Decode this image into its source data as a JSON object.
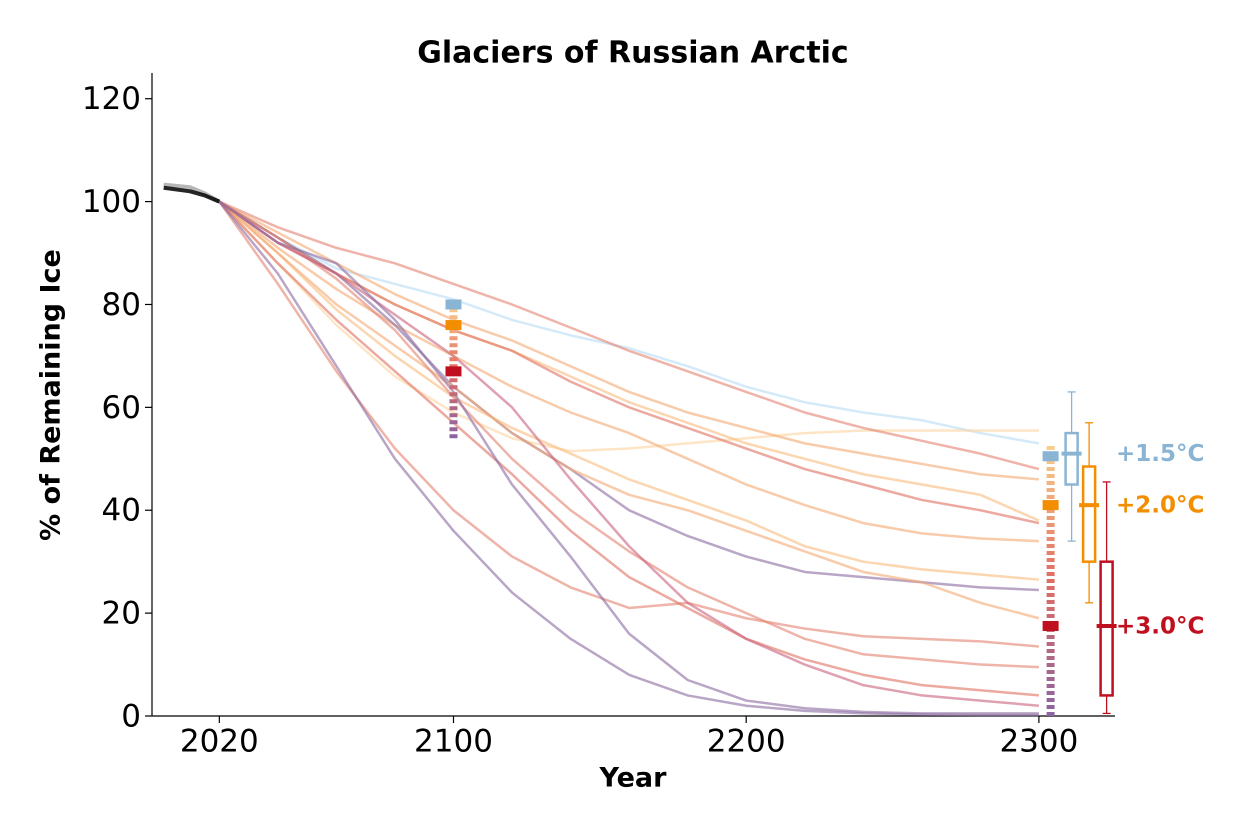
{
  "chart_data": {
    "type": "line",
    "title": "Glaciers of Russian Arctic",
    "xlabel": "Year",
    "ylabel": "% of Remaining Ice",
    "xlim": [
      1997,
      2326
    ],
    "ylim": [
      0,
      125
    ],
    "xticks": [
      2020,
      2100,
      2200,
      2300
    ],
    "yticks": [
      0,
      20,
      40,
      60,
      80,
      100,
      120
    ],
    "historical": {
      "x": [
        2001,
        2010,
        2015,
        2020
      ],
      "series": [
        {
          "color": "#aaaaaa",
          "values": [
            103.3,
            102.8,
            101.6,
            100
          ]
        },
        {
          "color": "#000000",
          "values": [
            102.7,
            102.0,
            101.2,
            100
          ]
        }
      ]
    },
    "x": [
      2020,
      2040,
      2060,
      2080,
      2100,
      2120,
      2140,
      2160,
      2180,
      2200,
      2220,
      2240,
      2260,
      2280,
      2300
    ],
    "series": [
      {
        "color": "#b9dcf5",
        "values": [
          100,
          93,
          87,
          84,
          81,
          77,
          74,
          71.5,
          68,
          64,
          61,
          59,
          57.5,
          55,
          53
        ]
      },
      {
        "color": "#fdd49e",
        "values": [
          100,
          88,
          76,
          66,
          59,
          54,
          51.5,
          52,
          53,
          54,
          55,
          55.5,
          55.5,
          55.5,
          55.5
        ]
      },
      {
        "color": "#e5826f",
        "values": [
          100,
          95,
          91,
          88,
          84,
          80,
          75.5,
          71,
          67,
          63,
          59,
          56,
          53.5,
          51,
          48
        ]
      },
      {
        "color": "#f4a872",
        "values": [
          100,
          94,
          88,
          82,
          77,
          73,
          68,
          63,
          59,
          56,
          53,
          51,
          49,
          47,
          46
        ]
      },
      {
        "color": "#f8bb7c",
        "values": [
          100,
          93,
          86,
          80,
          75,
          71,
          66,
          61,
          57,
          53,
          50,
          47,
          45,
          43,
          38
        ]
      },
      {
        "color": "#df6f60",
        "values": [
          100,
          92,
          86,
          80,
          75,
          71,
          65,
          60,
          56,
          52,
          48,
          45,
          42,
          40,
          37.5
        ]
      },
      {
        "color": "#f4a872",
        "values": [
          100,
          91,
          83,
          76,
          70,
          64,
          59,
          55,
          50,
          45,
          41,
          37.5,
          35.5,
          34.5,
          34
        ]
      },
      {
        "color": "#8a6aa0",
        "values": [
          100,
          93,
          86,
          76,
          64,
          55,
          48,
          40,
          35,
          31,
          28,
          27,
          26,
          25,
          24.5
        ]
      },
      {
        "color": "#f8bb7c",
        "values": [
          100,
          90,
          79,
          70,
          62,
          56,
          51,
          46,
          42,
          38,
          33,
          30,
          28.5,
          27.5,
          26.5
        ]
      },
      {
        "color": "#f4a872",
        "values": [
          100,
          90,
          80,
          72,
          64,
          55,
          48,
          43,
          40,
          36,
          32,
          28,
          26,
          22,
          19
        ]
      },
      {
        "color": "#e5826f",
        "values": [
          100,
          84,
          67,
          52,
          40,
          31,
          25,
          21,
          22,
          19,
          17,
          15.5,
          15,
          14.5,
          13.5
        ]
      },
      {
        "color": "#e5826f",
        "values": [
          100,
          93,
          85,
          75,
          62,
          50,
          40,
          32,
          25,
          20,
          15,
          12,
          11,
          10,
          9.5
        ]
      },
      {
        "color": "#df6f60",
        "values": [
          100,
          88,
          77,
          67,
          57,
          47,
          36,
          27,
          21,
          15,
          11,
          8,
          6,
          5,
          4
        ]
      },
      {
        "color": "#c9637f",
        "values": [
          100,
          92,
          86,
          78,
          70,
          60,
          46,
          33,
          22,
          15,
          10,
          6,
          4,
          3,
          2
        ]
      },
      {
        "color": "#8a6aa0",
        "values": [
          100,
          92,
          88,
          77,
          63,
          45,
          31,
          16,
          7,
          3,
          1.5,
          0.8,
          0.5,
          0.5,
          0.5
        ]
      },
      {
        "color": "#8a6aa0",
        "values": [
          100,
          86,
          68,
          50,
          36,
          24,
          15,
          8,
          4,
          2,
          1,
          0.5,
          0.3,
          0.2,
          0.2
        ]
      }
    ],
    "marker_x": [
      2100,
      2304
    ],
    "ranges": [
      [
        54,
        80
      ],
      [
        0,
        53
      ]
    ],
    "scenarios": [
      {
        "label": "+1.5°C",
        "color": "#8ab4d4",
        "markers": [
          80,
          50.5
        ],
        "box": {
          "whisker_low": 34,
          "q1": 45,
          "median": 51,
          "q3": 55,
          "whisker_high": 63
        }
      },
      {
        "label": "+2.0°C",
        "color": "#f28e00",
        "markers": [
          76,
          41
        ],
        "box": {
          "whisker_low": 22,
          "q1": 30,
          "median": 41,
          "q3": 48.5,
          "whisker_high": 57
        }
      },
      {
        "label": "+3.0°C",
        "color": "#c0101f",
        "markers": [
          67,
          17.5
        ],
        "box": {
          "whisker_low": 0.5,
          "q1": 4,
          "median": 17.5,
          "q3": 30,
          "whisker_high": 45.5
        }
      }
    ]
  }
}
